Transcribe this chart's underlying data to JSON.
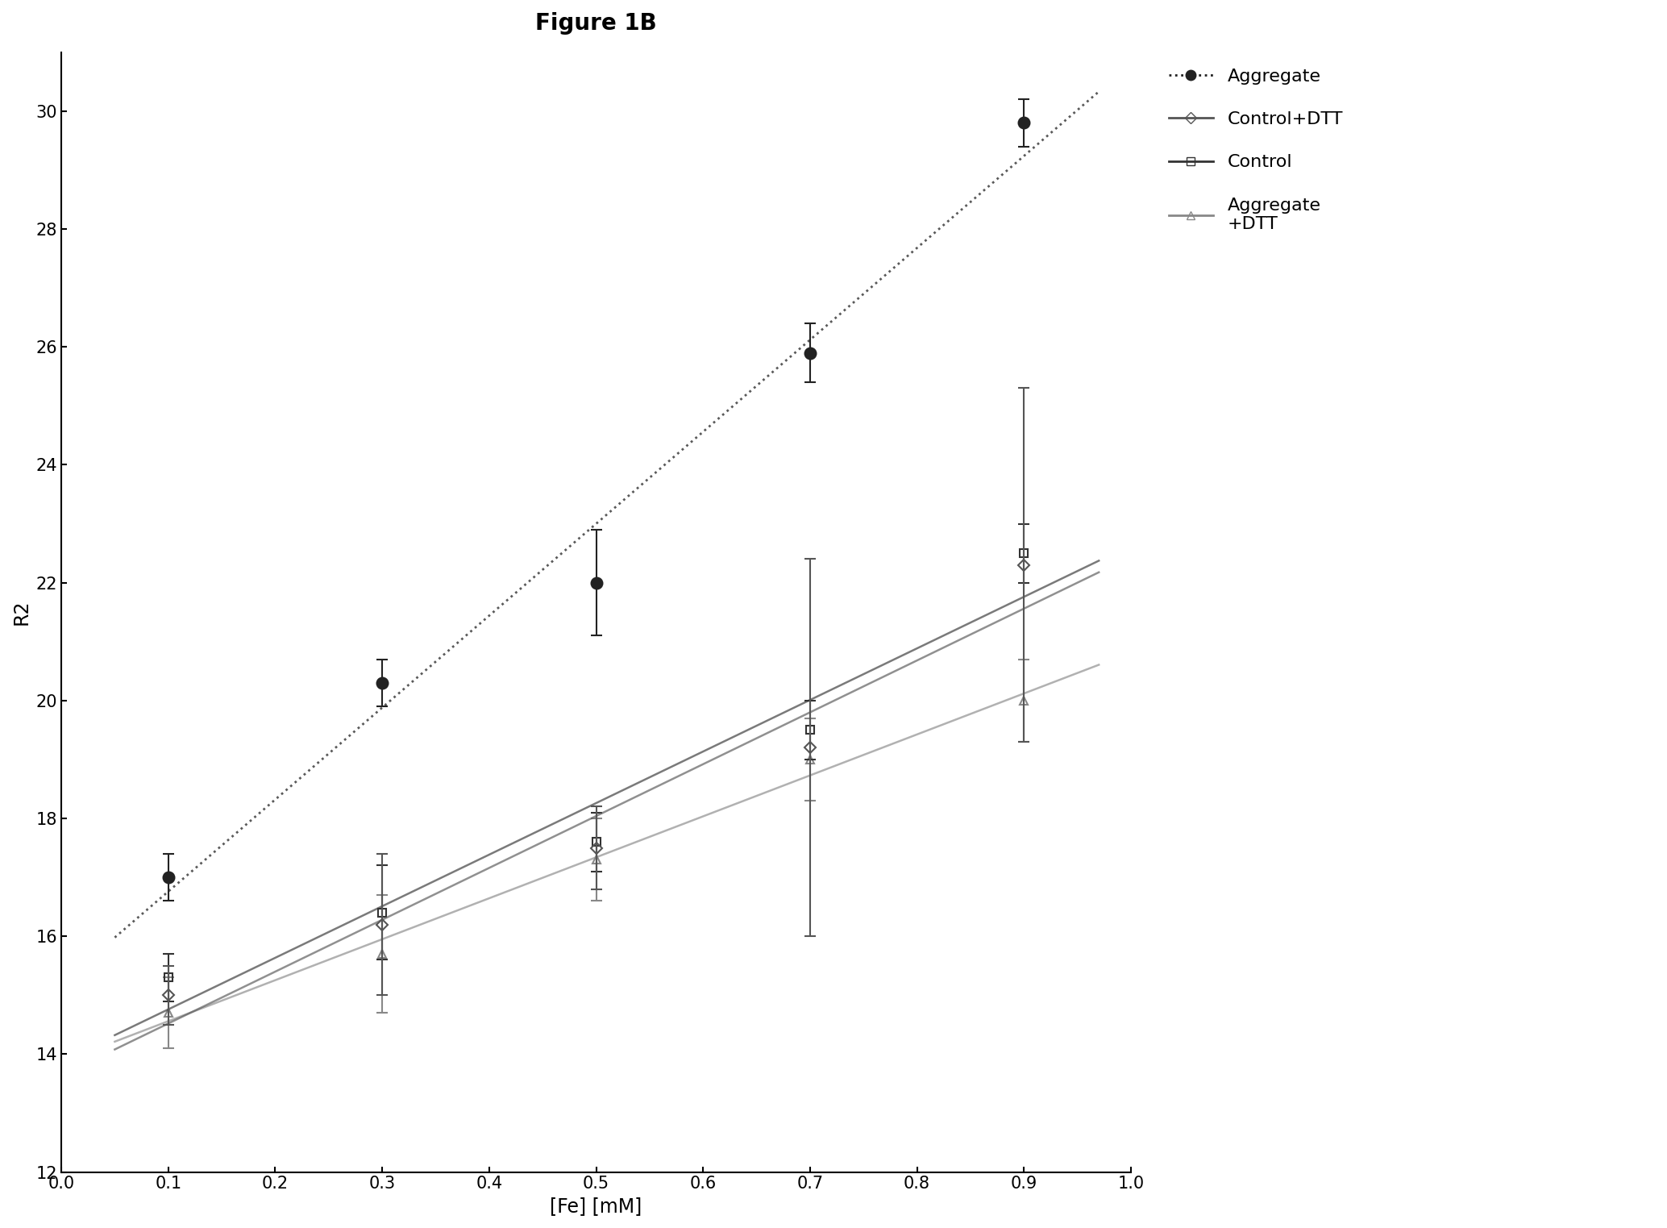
{
  "title": "Figure 1B",
  "xlabel": "[Fe] [mM]",
  "ylabel": "R2",
  "xlim": [
    0,
    1.0
  ],
  "ylim": [
    12,
    31
  ],
  "xticks": [
    0,
    0.1,
    0.2,
    0.3,
    0.4,
    0.5,
    0.6,
    0.7,
    0.8,
    0.9,
    1.0
  ],
  "yticks": [
    12,
    14,
    16,
    18,
    20,
    22,
    24,
    26,
    28,
    30
  ],
  "series": {
    "Aggregate": {
      "x": [
        0.1,
        0.3,
        0.5,
        0.7,
        0.9
      ],
      "y": [
        17.0,
        20.3,
        22.0,
        25.9,
        29.8
      ],
      "yerr": [
        0.4,
        0.4,
        0.9,
        0.5,
        0.4
      ],
      "marker": "o",
      "markersize": 10,
      "color": "#222222",
      "linestyle": "dotted",
      "linewidth": 2.5,
      "fillstyle": "full",
      "zorder": 5
    },
    "Control+DTT": {
      "x": [
        0.1,
        0.3,
        0.5,
        0.7,
        0.9
      ],
      "y": [
        15.0,
        16.2,
        17.5,
        19.2,
        22.3
      ],
      "yerr": [
        0.5,
        1.2,
        0.7,
        3.2,
        3.0
      ],
      "marker": "D",
      "markersize": 7,
      "color": "#555555",
      "linestyle": "solid",
      "linewidth": 2.5,
      "fillstyle": "none",
      "zorder": 4
    },
    "Control": {
      "x": [
        0.1,
        0.3,
        0.5,
        0.7,
        0.9
      ],
      "y": [
        15.3,
        16.4,
        17.6,
        19.5,
        22.5
      ],
      "yerr": [
        0.4,
        0.8,
        0.5,
        0.5,
        0.5
      ],
      "marker": "s",
      "markersize": 7,
      "color": "#333333",
      "linestyle": "solid",
      "linewidth": 2.5,
      "fillstyle": "none",
      "zorder": 3
    },
    "Aggregate+DTT": {
      "x": [
        0.1,
        0.3,
        0.5,
        0.7,
        0.9
      ],
      "y": [
        14.7,
        15.7,
        17.3,
        19.0,
        20.0
      ],
      "yerr": [
        0.6,
        1.0,
        0.7,
        0.7,
        0.7
      ],
      "marker": "^",
      "markersize": 7,
      "color": "#888888",
      "linestyle": "solid",
      "linewidth": 2.0,
      "fillstyle": "none",
      "zorder": 2
    }
  },
  "legend_labels": [
    "Aggregate",
    "Control+DTT",
    "Control",
    "Aggregate\n+DTT"
  ],
  "background_color": "#ffffff",
  "title_fontsize": 20,
  "label_fontsize": 17,
  "tick_fontsize": 15,
  "legend_fontsize": 16
}
